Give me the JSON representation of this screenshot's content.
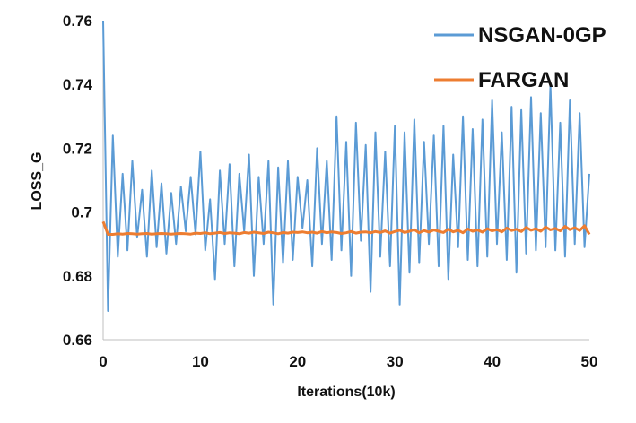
{
  "chart_data": {
    "type": "line",
    "title": "",
    "xlabel": "Iterations(10k)",
    "ylabel": "LOSS_G",
    "xlim": [
      0,
      50
    ],
    "ylim": [
      0.66,
      0.76
    ],
    "x_ticks": [
      0,
      10,
      20,
      30,
      40,
      50
    ],
    "x_tick_labels": [
      "0",
      "10",
      "20",
      "30",
      "40",
      "50"
    ],
    "y_ticks": [
      0.66,
      0.68,
      0.7,
      0.72,
      0.74,
      0.76
    ],
    "y_tick_labels": [
      "0.66",
      "0.68",
      "0.7",
      "0.72",
      "0.74",
      "0.76"
    ],
    "grid": false,
    "legend": "top-right",
    "series": [
      {
        "name": "NSGAN-0GP",
        "color": "#5b9bd5",
        "x": [
          0,
          0.5,
          1,
          1.5,
          2,
          2.5,
          3,
          3.5,
          4,
          4.5,
          5,
          5.5,
          6,
          6.5,
          7,
          7.5,
          8,
          8.5,
          9,
          9.5,
          10,
          10.5,
          11,
          11.5,
          12,
          12.5,
          13,
          13.5,
          14,
          14.5,
          15,
          15.5,
          16,
          16.5,
          17,
          17.5,
          18,
          18.5,
          19,
          19.5,
          20,
          20.5,
          21,
          21.5,
          22,
          22.5,
          23,
          23.5,
          24,
          24.5,
          25,
          25.5,
          26,
          26.5,
          27,
          27.5,
          28,
          28.5,
          29,
          29.5,
          30,
          30.5,
          31,
          31.5,
          32,
          32.5,
          33,
          33.5,
          34,
          34.5,
          35,
          35.5,
          36,
          36.5,
          37,
          37.5,
          38,
          38.5,
          39,
          39.5,
          40,
          40.5,
          41,
          41.5,
          42,
          42.5,
          43,
          43.5,
          44,
          44.5,
          45,
          45.5,
          46,
          46.5,
          47,
          47.5,
          48,
          48.5,
          49,
          49.5,
          50
        ],
        "values": [
          0.76,
          0.669,
          0.724,
          0.686,
          0.712,
          0.688,
          0.716,
          0.692,
          0.707,
          0.686,
          0.713,
          0.689,
          0.709,
          0.687,
          0.706,
          0.69,
          0.708,
          0.694,
          0.711,
          0.693,
          0.719,
          0.688,
          0.704,
          0.679,
          0.713,
          0.69,
          0.715,
          0.683,
          0.712,
          0.694,
          0.718,
          0.68,
          0.711,
          0.69,
          0.716,
          0.671,
          0.714,
          0.684,
          0.716,
          0.685,
          0.711,
          0.695,
          0.71,
          0.683,
          0.72,
          0.69,
          0.716,
          0.685,
          0.73,
          0.688,
          0.722,
          0.68,
          0.728,
          0.691,
          0.721,
          0.675,
          0.725,
          0.686,
          0.719,
          0.683,
          0.727,
          0.671,
          0.725,
          0.681,
          0.729,
          0.684,
          0.722,
          0.69,
          0.724,
          0.683,
          0.727,
          0.679,
          0.718,
          0.689,
          0.73,
          0.685,
          0.726,
          0.683,
          0.729,
          0.686,
          0.735,
          0.69,
          0.725,
          0.685,
          0.733,
          0.681,
          0.732,
          0.687,
          0.736,
          0.688,
          0.731,
          0.689,
          0.74,
          0.688,
          0.728,
          0.686,
          0.735,
          0.69,
          0.731,
          0.689,
          0.712
        ]
      },
      {
        "name": "FARGAN",
        "color": "#ed7d31",
        "x": [
          0,
          0.5,
          1,
          1.5,
          2,
          2.5,
          3,
          3.5,
          4,
          4.5,
          5,
          5.5,
          6,
          6.5,
          7,
          7.5,
          8,
          8.5,
          9,
          9.5,
          10,
          10.5,
          11,
          11.5,
          12,
          12.5,
          13,
          13.5,
          14,
          14.5,
          15,
          15.5,
          16,
          16.5,
          17,
          17.5,
          18,
          18.5,
          19,
          19.5,
          20,
          20.5,
          21,
          21.5,
          22,
          22.5,
          23,
          23.5,
          24,
          24.5,
          25,
          25.5,
          26,
          26.5,
          27,
          27.5,
          28,
          28.5,
          29,
          29.5,
          30,
          30.5,
          31,
          31.5,
          32,
          32.5,
          33,
          33.5,
          34,
          34.5,
          35,
          35.5,
          36,
          36.5,
          37,
          37.5,
          38,
          38.5,
          39,
          39.5,
          40,
          40.5,
          41,
          41.5,
          42,
          42.5,
          43,
          43.5,
          44,
          44.5,
          45,
          45.5,
          46,
          46.5,
          47,
          47.5,
          48,
          48.5,
          49,
          49.5,
          50
        ],
        "values": [
          0.697,
          0.693,
          0.693,
          0.6932,
          0.6931,
          0.6933,
          0.6932,
          0.6931,
          0.6932,
          0.6933,
          0.6931,
          0.6932,
          0.6933,
          0.6932,
          0.6931,
          0.6932,
          0.6933,
          0.6932,
          0.6931,
          0.6934,
          0.6933,
          0.6935,
          0.6932,
          0.6934,
          0.6936,
          0.6933,
          0.6935,
          0.6934,
          0.6932,
          0.6936,
          0.6934,
          0.6937,
          0.6935,
          0.6933,
          0.6937,
          0.6935,
          0.6932,
          0.6936,
          0.6934,
          0.6937,
          0.6936,
          0.6938,
          0.6935,
          0.6937,
          0.6934,
          0.6939,
          0.6935,
          0.6938,
          0.6936,
          0.6933,
          0.6935,
          0.6939,
          0.6934,
          0.6937,
          0.6938,
          0.6935,
          0.6939,
          0.6936,
          0.6941,
          0.6934,
          0.6939,
          0.6943,
          0.6936,
          0.694,
          0.6945,
          0.6935,
          0.6942,
          0.6937,
          0.6944,
          0.694,
          0.6936,
          0.6946,
          0.6938,
          0.6943,
          0.6935,
          0.6947,
          0.694,
          0.6944,
          0.6937,
          0.6948,
          0.6941,
          0.6945,
          0.6938,
          0.695,
          0.6942,
          0.6946,
          0.6939,
          0.6952,
          0.6943,
          0.6948,
          0.694,
          0.6953,
          0.6944,
          0.6949,
          0.6941,
          0.6955,
          0.6945,
          0.6951,
          0.6942,
          0.6957,
          0.693
        ]
      }
    ]
  }
}
